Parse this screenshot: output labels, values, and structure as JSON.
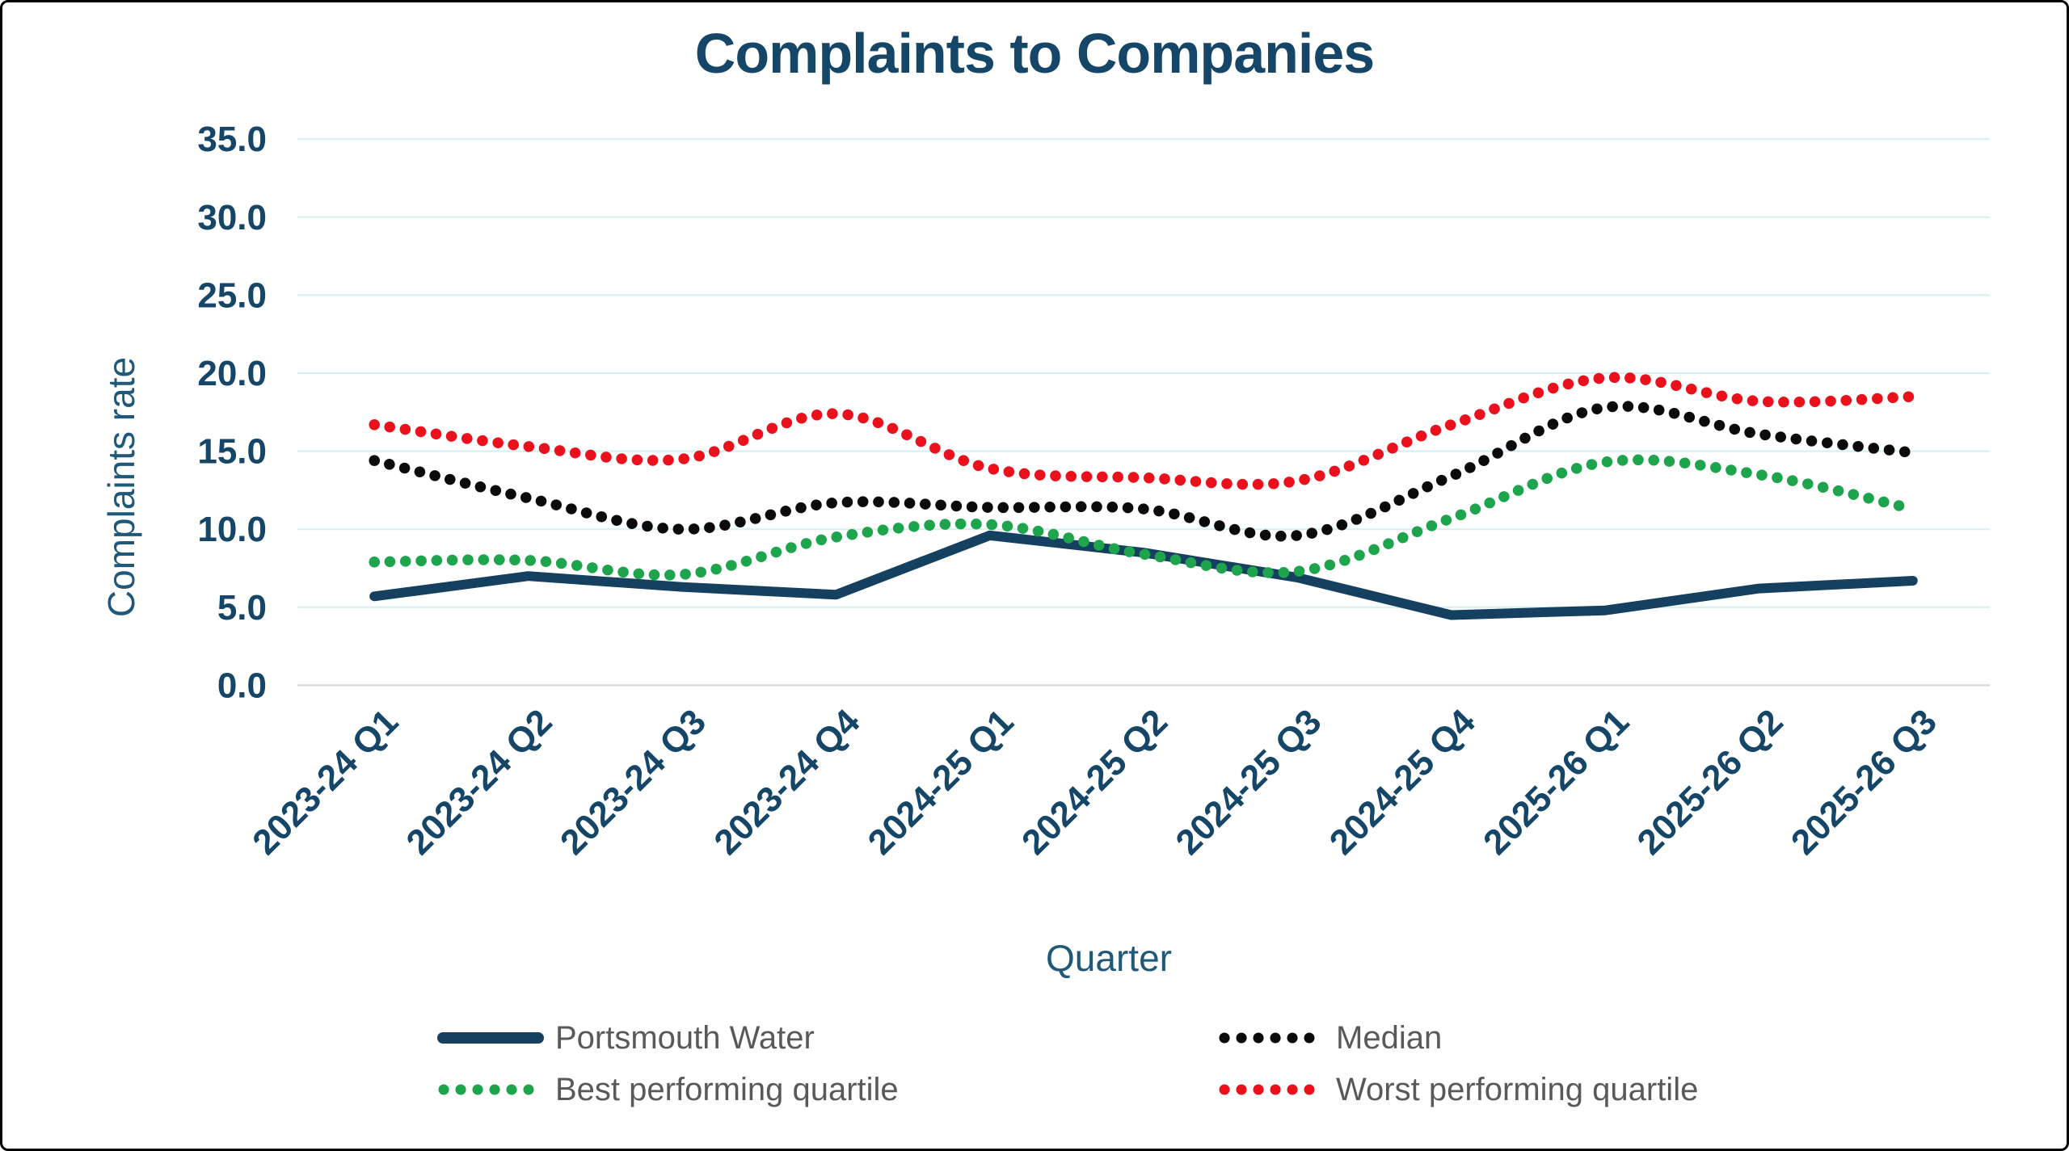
{
  "palette": {
    "background": "#ffffff",
    "frame_border": "#000000",
    "gridline": "#d8f0f2",
    "zero_line": "#d9d9d9",
    "title_text": "#164667",
    "axis_tick_text": "#164667",
    "axis_title_text": "#20587a",
    "legend_text": "#595959"
  },
  "chart_data": {
    "type": "line",
    "title": "Complaints to Companies",
    "xlabel": "Quarter",
    "ylabel": "Complaints rate",
    "ylim": [
      0,
      35
    ],
    "grid": "horizontal",
    "legend_position": "bottom",
    "y_ticks": [
      {
        "value": 0,
        "label": "0.0"
      },
      {
        "value": 5,
        "label": "5.0"
      },
      {
        "value": 10,
        "label": "10.0"
      },
      {
        "value": 15,
        "label": "15.0"
      },
      {
        "value": 20,
        "label": "20.0"
      },
      {
        "value": 25,
        "label": "25.0"
      },
      {
        "value": 30,
        "label": "30.0"
      },
      {
        "value": 35,
        "label": "35.0"
      }
    ],
    "categories": [
      "2023-24 Q1",
      "2023-24 Q2",
      "2023-24 Q3",
      "2023-24 Q4",
      "2024-25 Q1",
      "2024-25 Q2",
      "2024-25 Q3",
      "2024-25 Q4",
      "2025-26 Q1",
      "2025-26 Q2",
      "2025-26 Q3"
    ],
    "series": [
      {
        "name": "Portsmouth Water",
        "line_style": "solid",
        "color": "#16405f",
        "values": [
          5.7,
          7.0,
          6.3,
          5.8,
          9.6,
          8.5,
          6.9,
          4.5,
          4.8,
          6.2,
          6.7
        ]
      },
      {
        "name": "Median",
        "line_style": "dotted",
        "color": "#0b0b0b",
        "values": [
          14.4,
          12.0,
          10.0,
          11.7,
          11.4,
          11.3,
          9.6,
          13.4,
          17.8,
          16.1,
          14.9
        ]
      },
      {
        "name": "Best performing quartile",
        "line_style": "dotted",
        "color": "#1da44c",
        "values": [
          7.9,
          8.0,
          7.1,
          9.5,
          10.3,
          8.4,
          7.3,
          10.7,
          14.3,
          13.5,
          11.3
        ]
      },
      {
        "name": "Worst performing quartile",
        "line_style": "dotted",
        "color": "#ea111c",
        "values": [
          16.7,
          15.3,
          14.5,
          17.4,
          13.9,
          13.3,
          13.1,
          16.7,
          19.7,
          18.2,
          18.5
        ]
      }
    ]
  }
}
